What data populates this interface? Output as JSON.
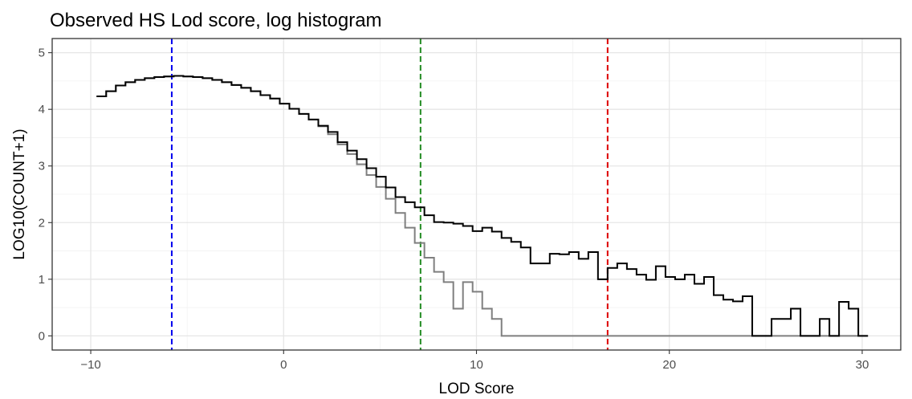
{
  "chart_data": {
    "type": "line",
    "style": "step",
    "title": "Observed HS Lod score, log histogram",
    "xlabel": "LOD Score",
    "ylabel": "LOG10(COUNT+1)",
    "xlim": [
      -12,
      32
    ],
    "ylim": [
      -0.25,
      5.25
    ],
    "x_ticks": [
      -10,
      0,
      10,
      20,
      30
    ],
    "x_tick_labels": [
      "−10",
      "0",
      "10",
      "20",
      "30"
    ],
    "y_ticks": [
      0,
      1,
      2,
      3,
      4,
      5
    ],
    "y_tick_labels": [
      "0",
      "1",
      "2",
      "3",
      "4",
      "5"
    ],
    "grid": true,
    "legend": "none",
    "series": [
      {
        "color": "#000000",
        "x": [
          -9.7,
          -9.2,
          -8.7,
          -8.2,
          -7.7,
          -7.2,
          -6.7,
          -6.2,
          -5.7,
          -5.2,
          -4.7,
          -4.2,
          -3.7,
          -3.2,
          -2.7,
          -2.2,
          -1.7,
          -1.2,
          -0.7,
          -0.2,
          0.3,
          0.8,
          1.3,
          1.8,
          2.3,
          2.8,
          3.3,
          3.8,
          4.3,
          4.8,
          5.3,
          5.8,
          6.3,
          6.8,
          7.3,
          7.8,
          8.3,
          8.8,
          9.3,
          9.8,
          10.3,
          10.8,
          11.3,
          11.8,
          12.3,
          12.8,
          13.3,
          13.8,
          14.3,
          14.8,
          15.3,
          15.8,
          16.3,
          16.8,
          17.3,
          17.8,
          18.3,
          18.8,
          19.3,
          19.8,
          20.3,
          20.8,
          21.3,
          21.8,
          22.3,
          22.8,
          23.3,
          23.8,
          24.3,
          24.8,
          25.3,
          25.8,
          26.3,
          26.8,
          27.3,
          27.8,
          28.3,
          28.8,
          29.3,
          29.8
        ],
        "y": [
          4.23,
          4.32,
          4.42,
          4.48,
          4.52,
          4.55,
          4.57,
          4.58,
          4.59,
          4.58,
          4.57,
          4.55,
          4.52,
          4.48,
          4.43,
          4.38,
          4.32,
          4.25,
          4.19,
          4.1,
          4.01,
          3.92,
          3.82,
          3.71,
          3.6,
          3.42,
          3.27,
          3.12,
          2.96,
          2.81,
          2.62,
          2.45,
          2.36,
          2.27,
          2.13,
          2.01,
          2.0,
          1.98,
          1.94,
          1.85,
          1.91,
          1.84,
          1.73,
          1.66,
          1.56,
          1.28,
          1.28,
          1.45,
          1.44,
          1.48,
          1.36,
          1.48,
          1.0,
          1.2,
          1.28,
          1.18,
          1.08,
          0.99,
          1.23,
          1.04,
          1.0,
          1.08,
          0.92,
          1.04,
          0.72,
          0.64,
          0.61,
          0.7,
          0.0,
          0.0,
          0.3,
          0.3,
          0.48,
          0.0,
          0.0,
          0.3,
          0.0,
          0.6,
          0.48,
          0.0
        ]
      },
      {
        "color": "#7f7f7f",
        "x": [
          -9.7,
          -9.2,
          -8.7,
          -8.2,
          -7.7,
          -7.2,
          -6.7,
          -6.2,
          -5.7,
          -5.2,
          -4.7,
          -4.2,
          -3.7,
          -3.2,
          -2.7,
          -2.2,
          -1.7,
          -1.2,
          -0.7,
          -0.2,
          0.3,
          0.8,
          1.3,
          1.8,
          2.3,
          2.8,
          3.3,
          3.8,
          4.3,
          4.8,
          5.3,
          5.8,
          6.3,
          6.8,
          7.3,
          7.8,
          8.3,
          8.8,
          9.3,
          9.8,
          10.3,
          10.8,
          11.3,
          11.8,
          12.3,
          12.8,
          13.3,
          13.8,
          14.3,
          14.8,
          15.3,
          15.8,
          16.3,
          16.8,
          17.3,
          17.8,
          18.3,
          18.8,
          19.3,
          19.8,
          20.3,
          20.8,
          21.3,
          21.8,
          22.3,
          22.8,
          23.3,
          23.8,
          24.3,
          24.8,
          25.3,
          25.8,
          26.3,
          26.8,
          27.3,
          27.8,
          28.3,
          28.8,
          29.3,
          29.8
        ],
        "y": [
          4.23,
          4.32,
          4.42,
          4.48,
          4.52,
          4.55,
          4.57,
          4.58,
          4.59,
          4.58,
          4.57,
          4.55,
          4.52,
          4.48,
          4.43,
          4.38,
          4.32,
          4.25,
          4.19,
          4.1,
          4.01,
          3.92,
          3.82,
          3.7,
          3.56,
          3.38,
          3.21,
          3.03,
          2.84,
          2.63,
          2.42,
          2.17,
          1.91,
          1.64,
          1.38,
          1.13,
          0.95,
          0.48,
          0.95,
          0.78,
          0.48,
          0.3,
          0.0,
          0.0,
          0.0,
          0.0,
          0.0,
          0.0,
          0.0,
          0.0,
          0.0,
          0.0,
          0.0,
          0.0,
          0.0,
          0.0,
          0.0,
          0.0,
          0.0,
          0.0,
          0.0,
          0.0,
          0.0,
          0.0,
          0.0,
          0.0,
          0.0,
          0.0,
          0.0,
          0.0,
          0.0,
          0.0,
          0.0,
          0.0,
          0.0,
          0.0,
          0.0,
          0.0,
          0.0,
          0.0
        ]
      }
    ],
    "vlines": [
      {
        "x": -5.8,
        "color": "#0000ee",
        "style": "dashed"
      },
      {
        "x": 7.1,
        "color": "#228b22",
        "style": "dashed"
      },
      {
        "x": 16.8,
        "color": "#dd0000",
        "style": "dashed"
      }
    ],
    "end_x": 30.3
  }
}
